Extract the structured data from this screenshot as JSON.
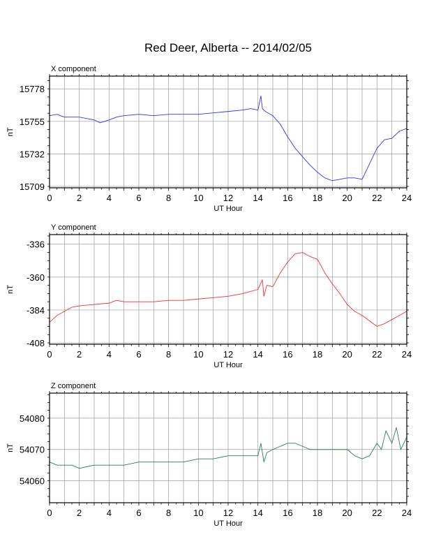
{
  "title": "Red Deer, Alberta -- 2014/02/05",
  "chart_data": [
    {
      "type": "line",
      "panel_title": "X component",
      "xlabel": "UT Hour",
      "ylabel": "nT",
      "xlim": [
        0,
        24
      ],
      "ylim": [
        15708,
        15787
      ],
      "yticks": [
        15709,
        15732,
        15755,
        15778
      ],
      "xticks": [
        0,
        2,
        4,
        6,
        8,
        10,
        12,
        14,
        16,
        18,
        20,
        22,
        24
      ],
      "grid": true,
      "color": "#3333ee",
      "series": [
        {
          "x": [
            0,
            0.5,
            1,
            2,
            3,
            3.4,
            4,
            4.5,
            5,
            6,
            7,
            8,
            9,
            10,
            11,
            12,
            13,
            13.5,
            14,
            14.2,
            14.3,
            14.5,
            15,
            15.5,
            16,
            16.5,
            17,
            17.5,
            18,
            18.5,
            19,
            19.5,
            20,
            20.5,
            21,
            21.5,
            22,
            22.5,
            23,
            23.5,
            24
          ],
          "values": [
            15759,
            15760,
            15758,
            15758,
            15756,
            15754,
            15756,
            15758,
            15759,
            15760,
            15759,
            15760,
            15760,
            15760,
            15761,
            15762,
            15763,
            15764,
            15763,
            15773,
            15764,
            15762,
            15759,
            15753,
            15744,
            15736,
            15730,
            15724,
            15719,
            15715,
            15713,
            15714,
            15715,
            15715,
            15714,
            15725,
            15736,
            15742,
            15743,
            15748,
            15750
          ]
        }
      ]
    },
    {
      "type": "line",
      "panel_title": "Y component",
      "xlabel": "UT Hour",
      "ylabel": "nT",
      "xlim": [
        0,
        24
      ],
      "ylim": [
        -409,
        -329
      ],
      "yticks": [
        -336,
        -360,
        -384,
        -408
      ],
      "xticks": [
        0,
        2,
        4,
        6,
        8,
        10,
        12,
        14,
        16,
        18,
        20,
        22,
        24
      ],
      "grid": true,
      "color": "#ee3333",
      "series": [
        {
          "x": [
            0,
            0.5,
            1,
            1.5,
            2,
            3,
            4,
            4.5,
            5,
            6,
            7,
            8,
            9,
            10,
            11,
            12,
            13,
            14,
            14.3,
            14.4,
            14.6,
            15,
            15.5,
            16,
            16.5,
            17,
            17.5,
            18,
            18.5,
            19,
            19.5,
            20,
            20.5,
            21,
            21.5,
            22,
            22.5,
            23,
            23.5,
            24
          ],
          "values": [
            -393,
            -388,
            -385,
            -382,
            -381,
            -380,
            -379,
            -377,
            -378,
            -378,
            -378,
            -377,
            -377,
            -376,
            -375,
            -374,
            -372,
            -369,
            -362,
            -374,
            -366,
            -367,
            -357,
            -349,
            -343,
            -342,
            -345,
            -347,
            -357,
            -365,
            -372,
            -380,
            -385,
            -388,
            -392,
            -396,
            -394,
            -391,
            -388,
            -385
          ]
        }
      ]
    },
    {
      "type": "line",
      "panel_title": "Z component",
      "xlabel": "UT Hour",
      "ylabel": "nT",
      "xlim": [
        0,
        24
      ],
      "ylim": [
        54053,
        54088
      ],
      "yticks": [
        54060,
        54070,
        54080
      ],
      "xticks": [
        0,
        2,
        4,
        6,
        8,
        10,
        12,
        14,
        16,
        18,
        20,
        22,
        24
      ],
      "grid": true,
      "color": "#2e7d4f",
      "series": [
        {
          "x": [
            0,
            0.5,
            1,
            1.5,
            2,
            3,
            4,
            5,
            6,
            7,
            8,
            9,
            10,
            11,
            12,
            13,
            14,
            14.2,
            14.4,
            14.6,
            15,
            15.5,
            16,
            16.5,
            17,
            17.5,
            18,
            19,
            20,
            20.5,
            21,
            21.5,
            22,
            22.3,
            22.6,
            23,
            23.3,
            23.6,
            24
          ],
          "values": [
            54066,
            54065,
            54065,
            54065,
            54064,
            54065,
            54065,
            54065,
            54066,
            54066,
            54066,
            54066,
            54067,
            54067,
            54068,
            54068,
            54068,
            54072,
            54066,
            54069,
            54070,
            54071,
            54072,
            54072,
            54071,
            54070,
            54070,
            54070,
            54070,
            54068,
            54067,
            54068,
            54072,
            54070,
            54076,
            54072,
            54077,
            54070,
            54074
          ]
        }
      ]
    }
  ]
}
